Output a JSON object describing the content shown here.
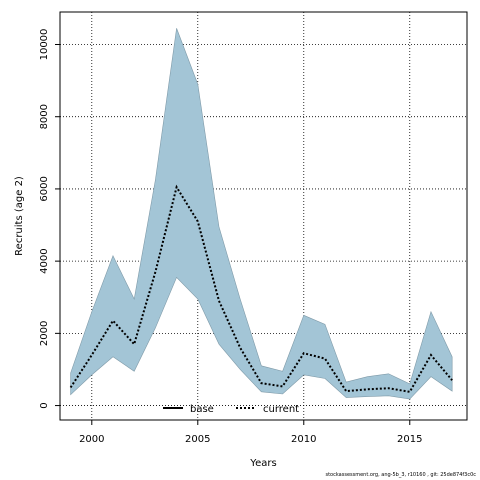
{
  "chart_data": {
    "type": "line",
    "xlabel": "Years",
    "ylabel": "Recruits (age 2)",
    "xlim": [
      1998.5,
      2017.7
    ],
    "ylim": [
      -400,
      10900
    ],
    "x_ticks": [
      2000,
      2005,
      2010,
      2015
    ],
    "y_ticks": [
      0,
      2000,
      4000,
      6000,
      8000,
      10000
    ],
    "grid": true,
    "grid_style": "dotted",
    "legend": {
      "placement": "bottom-center",
      "entries": [
        {
          "label": "base",
          "style": "solid",
          "color": "#000000"
        },
        {
          "label": "current",
          "style": "dotted",
          "color": "#000000"
        }
      ]
    },
    "band_color": "#a3c5d6",
    "x": [
      1999,
      2000,
      2001,
      2002,
      2003,
      2004,
      2005,
      2006,
      2007,
      2008,
      2009,
      2010,
      2011,
      2012,
      2013,
      2014,
      2015,
      2016,
      2017
    ],
    "series": [
      {
        "name": "current",
        "values": [
          500,
          1400,
          2350,
          1700,
          3700,
          6050,
          5100,
          2900,
          1600,
          620,
          530,
          1450,
          1300,
          400,
          450,
          480,
          380,
          1400,
          700
        ]
      }
    ],
    "band": {
      "upper": [
        900,
        2600,
        4150,
        2950,
        6250,
        10450,
        8900,
        4950,
        2950,
        1100,
        950,
        2500,
        2250,
        650,
        800,
        880,
        600,
        2600,
        1350
      ],
      "lower": [
        300,
        850,
        1350,
        950,
        2150,
        3550,
        2950,
        1700,
        1000,
        380,
        320,
        850,
        750,
        220,
        250,
        270,
        180,
        800,
        400
      ]
    }
  },
  "footer": "stockassessment.org, ang-5b_3, r10160 , git: 25de874f3c0c"
}
